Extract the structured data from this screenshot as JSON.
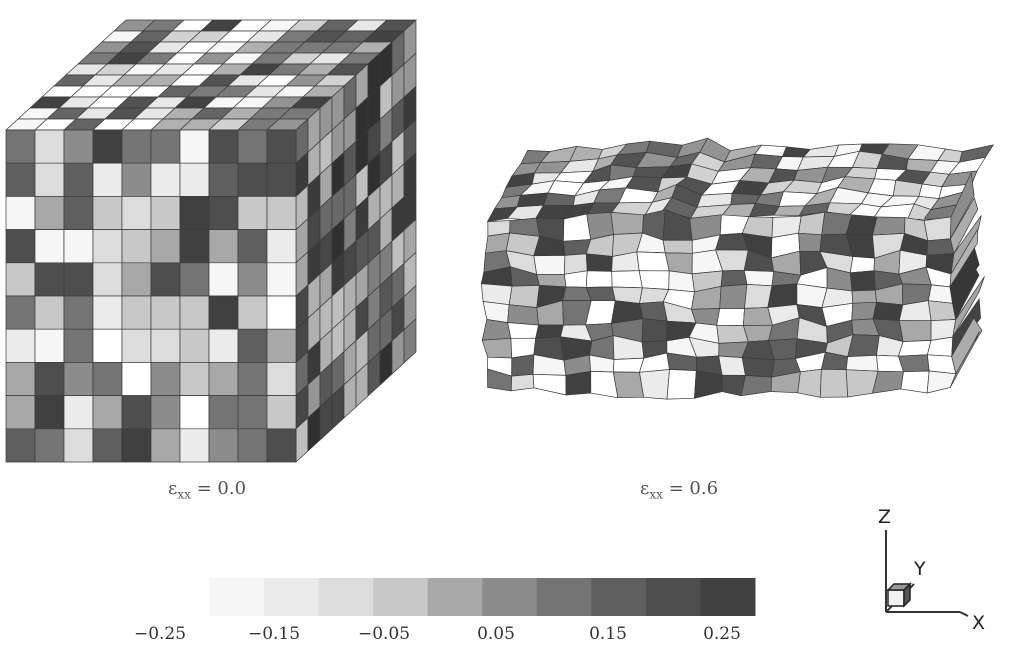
{
  "panels": [
    {
      "caption": {
        "symbol": "ε",
        "subscript": "xx",
        "equals": " = ",
        "value": "0.0"
      }
    },
    {
      "caption": {
        "symbol": "ε",
        "subscript": "xx",
        "equals": " = ",
        "value": "0.6"
      }
    }
  ],
  "colorbar": {
    "ticks": [
      "−0.25",
      "−0.15",
      "−0.05",
      "0.05",
      "0.15",
      "0.25"
    ],
    "levels": [
      "#ffffff",
      "#f6f6f6",
      "#ebebeb",
      "#dcdcdc",
      "#c8c8c8",
      "#a8a8a8",
      "#8c8c8c",
      "#747474",
      "#5f5f5f",
      "#4e4e4e",
      "#404040"
    ]
  },
  "axes": {
    "z": "Z",
    "y": "Y",
    "x": "X"
  }
}
